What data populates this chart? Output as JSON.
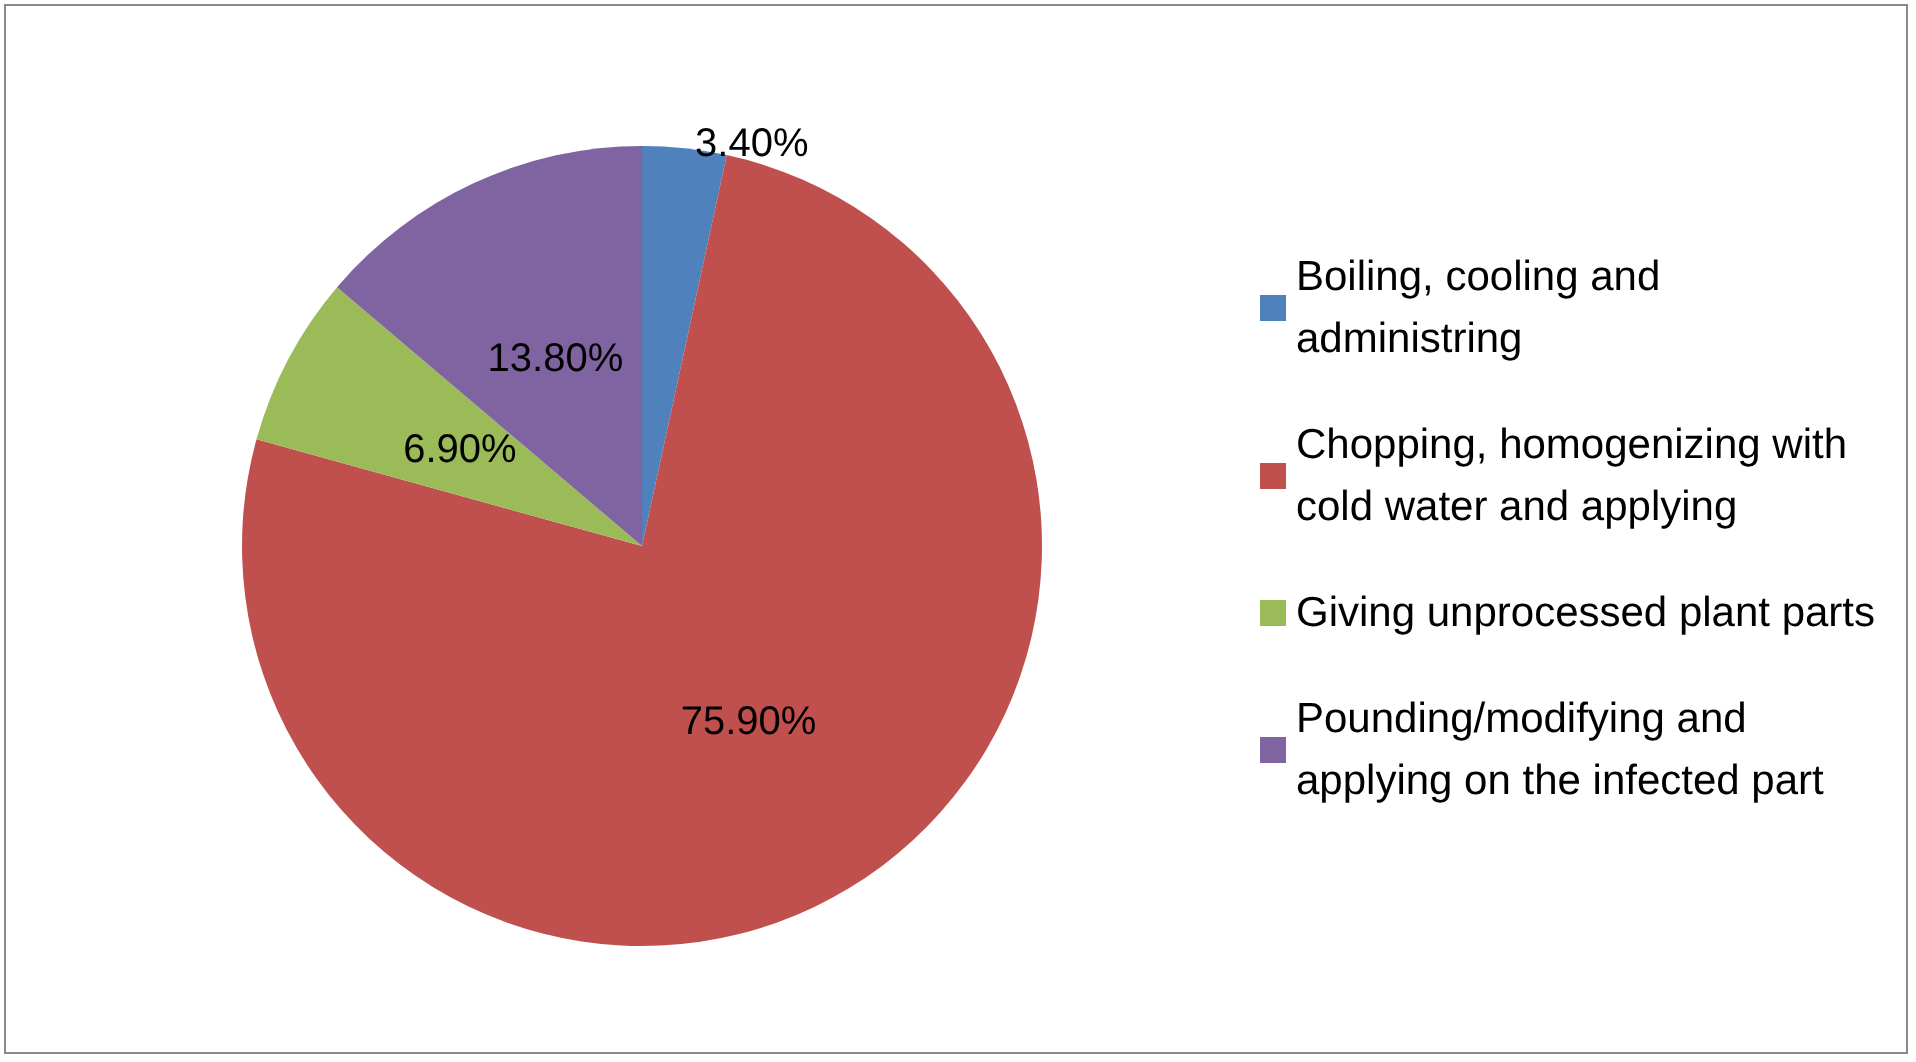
{
  "chart_data": {
    "type": "pie",
    "categories": [
      "Boiling, cooling and administring",
      "Chopping, homogenizing with cold water and applying",
      "Giving unprocessed plant parts",
      "Pounding/modifying and applying on the infected part"
    ],
    "values": [
      3.4,
      75.9,
      6.9,
      13.8
    ],
    "colors": [
      "#4f81bd",
      "#c0504d",
      "#9bbb59",
      "#8064a2"
    ],
    "value_labels": [
      "3.40%",
      "75.90%",
      "6.90%",
      "13.80%"
    ],
    "legend": "right"
  }
}
